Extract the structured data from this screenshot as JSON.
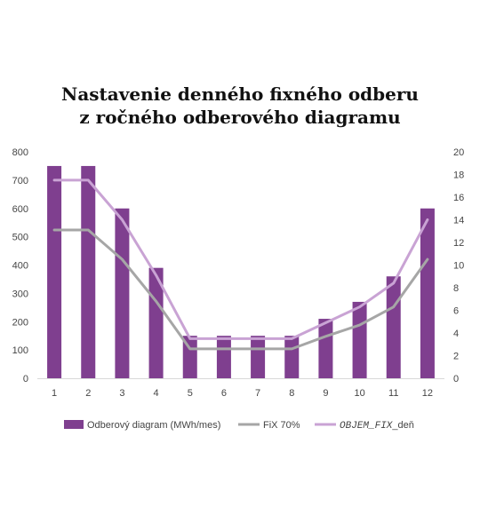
{
  "chart_data": {
    "type": "bar",
    "title_lines": [
      "Nastavenie denného fixného odberu",
      "z ročného odberového diagramu"
    ],
    "categories": [
      "1",
      "2",
      "3",
      "4",
      "5",
      "6",
      "7",
      "8",
      "9",
      "10",
      "11",
      "12"
    ],
    "series": [
      {
        "name": "Odberový diagram (MWh/mes)",
        "type": "bar",
        "axis": "left",
        "color": "#7f3f8f",
        "values": [
          750,
          750,
          600,
          390,
          150,
          150,
          150,
          150,
          210,
          270,
          360,
          600
        ]
      },
      {
        "name": "FiX 70%",
        "type": "line",
        "axis": "right",
        "color": "#a6a6a6",
        "values": [
          13.1,
          13.1,
          10.5,
          6.8,
          2.6,
          2.6,
          2.6,
          2.6,
          3.7,
          4.7,
          6.3,
          10.5
        ]
      },
      {
        "name_italic": "OBJEM_FIX",
        "name_suffix": "_deň",
        "type": "line",
        "axis": "right",
        "color": "#c9a3d4",
        "values": [
          17.5,
          17.5,
          14.0,
          9.1,
          3.5,
          3.5,
          3.5,
          3.5,
          4.9,
          6.3,
          8.4,
          14.0
        ]
      }
    ],
    "y_left": {
      "min": 0,
      "max": 800,
      "ticks": [
        "0",
        "100",
        "200",
        "300",
        "400",
        "500",
        "600",
        "700",
        "800"
      ]
    },
    "y_right": {
      "min": 0,
      "max": 20,
      "ticks": [
        "0",
        "2",
        "4",
        "6",
        "8",
        "10",
        "12",
        "14",
        "16",
        "18",
        "20"
      ]
    },
    "grid": false,
    "legend_position": "bottom"
  }
}
